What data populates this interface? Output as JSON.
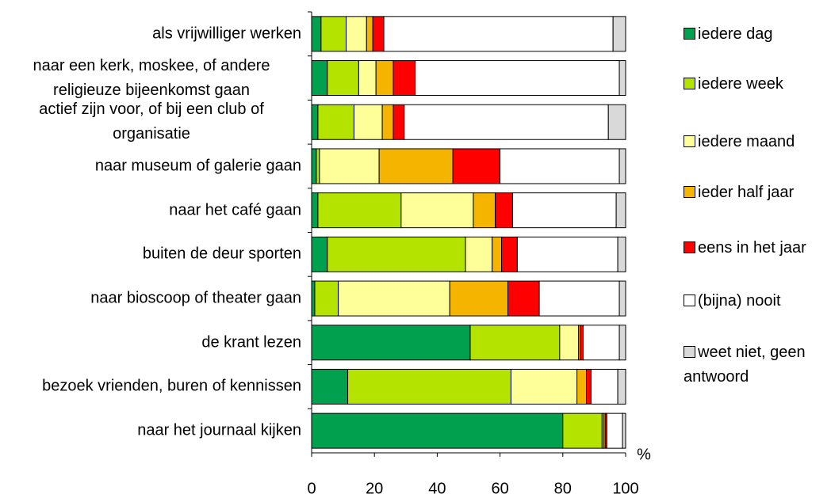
{
  "chart_data": {
    "type": "stacked-bar-horizontal",
    "categories": [
      "als vrijwilliger werken",
      "naar een kerk, moskee, of andere religieuze bijeenkomst gaan",
      "actief zijn voor, of bij een club of organisatie",
      "naar museum of galerie gaan",
      "naar het café gaan",
      "buiten de deur sporten",
      "naar bioscoop of theater gaan",
      "de krant lezen",
      "bezoek vrienden, buren of kennissen",
      "naar het journaal kijken"
    ],
    "series": [
      {
        "name": "iedere dag",
        "color": "#00a04e",
        "values": [
          3,
          5,
          2,
          1.5,
          2,
          5,
          1,
          50.5,
          11.5,
          80
        ]
      },
      {
        "name": "iedere week",
        "color": "#b5e300",
        "values": [
          8,
          10,
          11.5,
          1,
          26.5,
          44,
          7.5,
          28.5,
          52,
          12.5
        ]
      },
      {
        "name": "iedere maand",
        "color": "#ffff99",
        "values": [
          6.5,
          5.5,
          9,
          19,
          23,
          8.5,
          35.5,
          6,
          21,
          0.5
        ]
      },
      {
        "name": "ieder half jaar",
        "color": "#f5b400",
        "values": [
          2,
          5.5,
          3.5,
          23.5,
          7,
          3,
          18.5,
          0.5,
          3,
          0.5
        ]
      },
      {
        "name": "eens in het jaar",
        "color": "#ff0000",
        "values": [
          3.5,
          7,
          3.5,
          15,
          5.5,
          5,
          10,
          1,
          1.5,
          0.5
        ]
      },
      {
        "name": "(bijna) nooit",
        "color": "#ffffff",
        "values": [
          73,
          65,
          65,
          38,
          33,
          32,
          25.5,
          11.5,
          8.5,
          5
        ]
      },
      {
        "name": "weet niet, geen antwoord",
        "color": "#d9d9d9",
        "values": [
          4,
          2,
          5.5,
          2,
          3,
          2.5,
          2,
          2,
          2.5,
          1
        ]
      }
    ],
    "x_label": "%",
    "xlim": [
      0,
      100
    ],
    "xticks": [
      0,
      20,
      40,
      60,
      80,
      100
    ]
  }
}
